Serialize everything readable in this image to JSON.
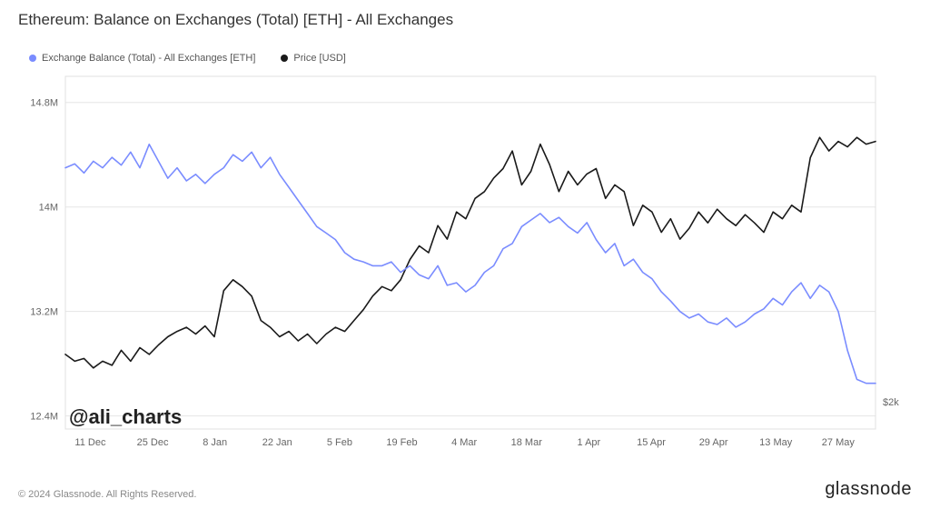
{
  "title": "Ethereum: Balance on Exchanges (Total) [ETH] - All Exchanges",
  "legend": {
    "series1": {
      "label": "Exchange Balance (Total) - All Exchanges [ETH]",
      "color": "#7a8cff"
    },
    "series2": {
      "label": "Price [USD]",
      "color": "#1a1a1a"
    }
  },
  "watermark": "@ali_charts",
  "copyright": "© 2024 Glassnode. All Rights Reserved.",
  "brand": "glassnode",
  "chart": {
    "type": "line",
    "background_color": "#ffffff",
    "grid_color": "#e5e5e5",
    "border_color": "#e0e0e0",
    "x": {
      "ticks": [
        "11 Dec",
        "25 Dec",
        "8 Jan",
        "22 Jan",
        "5 Feb",
        "19 Feb",
        "4 Mar",
        "18 Mar",
        "1 Apr",
        "15 Apr",
        "29 Apr",
        "13 May",
        "27 May"
      ]
    },
    "y_left": {
      "label_fontsize": 11,
      "ticks": [
        12.4,
        13.2,
        14,
        14.8
      ],
      "tick_labels": [
        "12.4M",
        "13.2M",
        "14M",
        "14.8M"
      ],
      "ylim": [
        12.3,
        15.0
      ]
    },
    "y_right": {
      "ticks": [
        2000
      ],
      "tick_labels": [
        "$2k"
      ],
      "ylim": [
        1800,
        4400
      ]
    },
    "series_balance": {
      "color": "#7a8cff",
      "line_width": 1.6,
      "axis": "left",
      "values": [
        14.3,
        14.33,
        14.26,
        14.35,
        14.3,
        14.38,
        14.32,
        14.42,
        14.3,
        14.48,
        14.35,
        14.22,
        14.3,
        14.2,
        14.25,
        14.18,
        14.25,
        14.3,
        14.4,
        14.35,
        14.42,
        14.3,
        14.38,
        14.25,
        14.15,
        14.05,
        13.95,
        13.85,
        13.8,
        13.75,
        13.65,
        13.6,
        13.58,
        13.55,
        13.55,
        13.58,
        13.5,
        13.55,
        13.48,
        13.45,
        13.55,
        13.4,
        13.42,
        13.35,
        13.4,
        13.5,
        13.55,
        13.68,
        13.72,
        13.85,
        13.9,
        13.95,
        13.88,
        13.92,
        13.85,
        13.8,
        13.88,
        13.75,
        13.65,
        13.72,
        13.55,
        13.6,
        13.5,
        13.45,
        13.35,
        13.28,
        13.2,
        13.15,
        13.18,
        13.12,
        13.1,
        13.15,
        13.08,
        13.12,
        13.18,
        13.22,
        13.3,
        13.25,
        13.35,
        13.42,
        13.3,
        13.4,
        13.35,
        13.2,
        12.9,
        12.68,
        12.65,
        12.65
      ]
    },
    "series_price": {
      "color": "#1a1a1a",
      "line_width": 1.6,
      "axis": "right",
      "values": [
        2350,
        2300,
        2320,
        2250,
        2300,
        2270,
        2380,
        2300,
        2400,
        2350,
        2420,
        2480,
        2520,
        2550,
        2500,
        2560,
        2480,
        2820,
        2900,
        2850,
        2780,
        2600,
        2550,
        2480,
        2520,
        2450,
        2500,
        2430,
        2500,
        2550,
        2520,
        2600,
        2680,
        2780,
        2850,
        2820,
        2900,
        3050,
        3150,
        3100,
        3300,
        3200,
        3400,
        3350,
        3500,
        3550,
        3650,
        3720,
        3850,
        3600,
        3700,
        3900,
        3750,
        3550,
        3700,
        3600,
        3680,
        3720,
        3500,
        3600,
        3550,
        3300,
        3450,
        3400,
        3250,
        3350,
        3200,
        3280,
        3400,
        3320,
        3420,
        3350,
        3300,
        3380,
        3320,
        3250,
        3400,
        3350,
        3450,
        3400,
        3800,
        3950,
        3850,
        3920,
        3880,
        3950,
        3900,
        3920
      ]
    },
    "n_points": 88
  }
}
